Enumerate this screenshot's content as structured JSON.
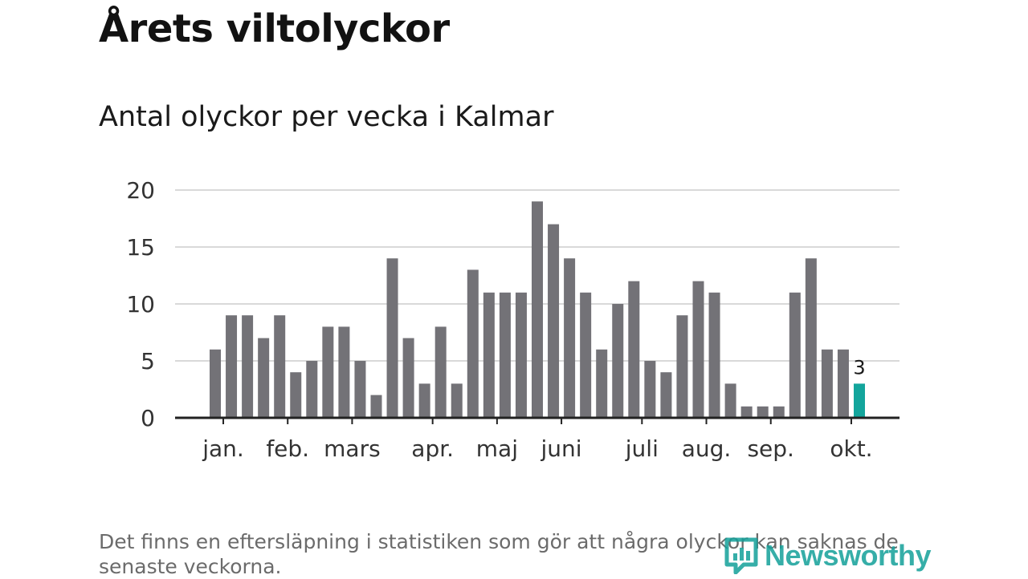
{
  "header": {
    "title": "Årets viltolyckor",
    "subtitle": "Antal olyckor per vecka i Kalmar"
  },
  "footnote": "Det finns en eftersläpning i statistiken som gör att några olyckor kan saknas de senaste veckorna.",
  "logo": {
    "text": "Newsworthy",
    "icon": "newsworthy-logo-icon",
    "color": "#14a19a"
  },
  "colors": {
    "bar": "#737277",
    "highlight": "#13a59c",
    "grid": "#d9d9d9",
    "axis": "#222222"
  },
  "chart_data": {
    "type": "bar",
    "title": "Antal olyckor per vecka i Kalmar",
    "xlabel": "",
    "ylabel": "",
    "ylim": [
      0,
      20
    ],
    "yticks": [
      0,
      5,
      10,
      15,
      20
    ],
    "grid": true,
    "legend": "none",
    "weeks": [
      1,
      2,
      3,
      4,
      5,
      6,
      7,
      8,
      9,
      10,
      11,
      12,
      13,
      14,
      15,
      16,
      17,
      18,
      19,
      20,
      21,
      22,
      23,
      24,
      25,
      26,
      27,
      28,
      29,
      30,
      31,
      32,
      33,
      34,
      35,
      36,
      37,
      38,
      39,
      40,
      41
    ],
    "values": [
      6,
      9,
      9,
      7,
      9,
      4,
      5,
      8,
      8,
      5,
      2,
      14,
      7,
      3,
      8,
      3,
      13,
      11,
      11,
      11,
      19,
      17,
      14,
      11,
      6,
      10,
      12,
      5,
      4,
      9,
      12,
      11,
      3,
      1,
      1,
      1,
      11,
      14,
      6,
      6,
      3
    ],
    "highlight_index": 40,
    "highlight_label": "3",
    "month_labels": [
      {
        "label": "jan.",
        "week": 1.5
      },
      {
        "label": "feb.",
        "week": 5.5
      },
      {
        "label": "mars",
        "week": 9.5
      },
      {
        "label": "apr.",
        "week": 14.5
      },
      {
        "label": "maj",
        "week": 18.5
      },
      {
        "label": "juni",
        "week": 22.5
      },
      {
        "label": "juli",
        "week": 27.5
      },
      {
        "label": "aug.",
        "week": 31.5
      },
      {
        "label": "sep.",
        "week": 35.5
      },
      {
        "label": "okt.",
        "week": 40.5
      }
    ]
  }
}
